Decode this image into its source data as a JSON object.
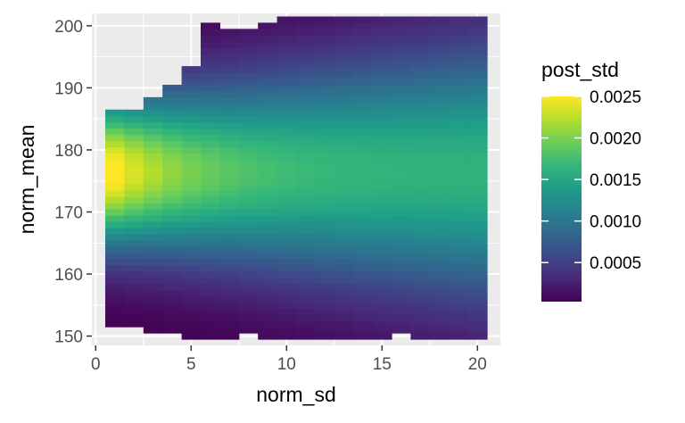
{
  "chart_data": {
    "type": "heatmap",
    "title": "",
    "xlabel": "norm_sd",
    "ylabel": "norm_mean",
    "xlim": [
      -0.2,
      21.2
    ],
    "ylim": [
      148.5,
      202
    ],
    "x_ticks": [
      0,
      5,
      10,
      15,
      20
    ],
    "x_tick_labels": [
      "0",
      "5",
      "10",
      "15",
      "20"
    ],
    "y_ticks": [
      150,
      160,
      170,
      180,
      190,
      200
    ],
    "y_tick_labels": [
      "150",
      "160",
      "170",
      "180",
      "190",
      "200"
    ],
    "grid": true,
    "x_bin_centers": [
      1,
      2,
      3,
      4,
      5,
      6,
      7,
      8,
      9,
      10,
      11,
      12,
      13,
      14,
      15,
      16,
      17,
      18,
      19,
      20
    ],
    "y_bin_step": 1,
    "x_bin_width": 1,
    "cell_value_summary": "post_std peaks near 0.0025 at norm_sd≈1, norm_mean≈181; decreases toward the top and bottom edges of the filled region",
    "column_top_edges": [
      186,
      186,
      188,
      190,
      193,
      200,
      199,
      199,
      200,
      201,
      201,
      201,
      201,
      201,
      201,
      201,
      201,
      201,
      201,
      201
    ],
    "column_bottom_edges": [
      152,
      152,
      151,
      151,
      150,
      150,
      150,
      151,
      150,
      150,
      150,
      150,
      150,
      150,
      150,
      151,
      150,
      150,
      150,
      150
    ],
    "peak": {
      "x": 1,
      "y": 181,
      "value": 0.0025
    },
    "legend": {
      "title": "post_std",
      "placement": "right",
      "colorbar_min": 3e-05,
      "colorbar_max": 0.0025,
      "breaks": [
        0.0005,
        0.001,
        0.0015,
        0.002,
        0.0025
      ],
      "break_labels": [
        "0.0005",
        "0.0010",
        "0.0015",
        "0.0020",
        "0.0025"
      ],
      "colors": [
        "#440154",
        "#482878",
        "#3e4989",
        "#31688e",
        "#26828e",
        "#1f9e89",
        "#35b779",
        "#6ece58",
        "#b5de2b",
        "#fde725"
      ]
    },
    "colors": {
      "panel_background": "#ebebeb",
      "grid_major": "#ffffff"
    }
  }
}
